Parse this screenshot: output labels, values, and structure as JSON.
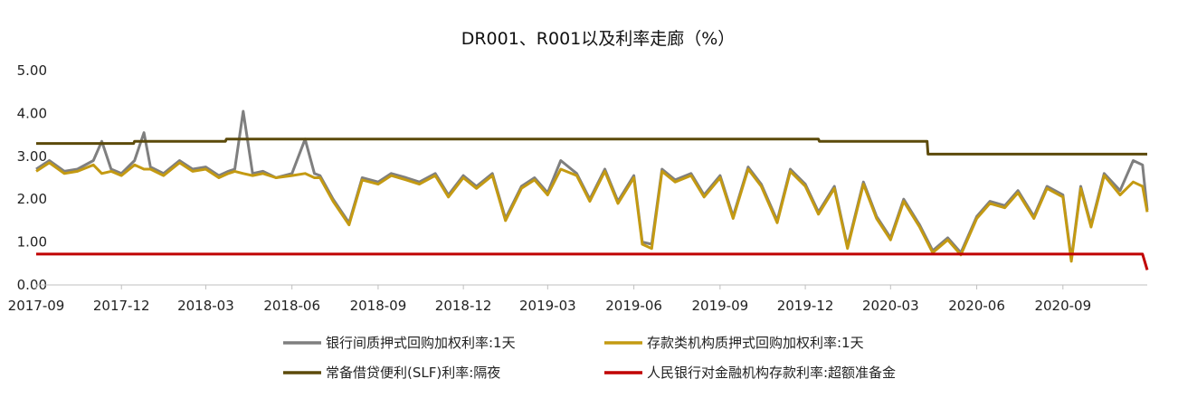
{
  "chart_data": {
    "type": "line",
    "title": "DR001、R001以及利率走廊（%）",
    "xlabel": "",
    "ylabel": "",
    "ylim": [
      0,
      5
    ],
    "yticks": [
      "0.00",
      "1.00",
      "2.00",
      "3.00",
      "4.00",
      "5.00"
    ],
    "xticks": [
      "2017-09",
      "2017-12",
      "2018-03",
      "2018-06",
      "2018-09",
      "2018-12",
      "2019-03",
      "2019-06",
      "2019-09",
      "2019-12",
      "2020-03",
      "2020-06",
      "2020-09"
    ],
    "x_range": [
      "2017-09-01",
      "2020-11-30"
    ],
    "grid": false,
    "legend_position": "bottom",
    "series": [
      {
        "name": "银行间质押式回购加权利率:1天",
        "color": "#7f7f7f",
        "x": [
          "2017-09-01",
          "2017-09-15",
          "2017-10-01",
          "2017-10-15",
          "2017-11-01",
          "2017-11-10",
          "2017-11-20",
          "2017-12-01",
          "2017-12-15",
          "2017-12-25",
          "2018-01-01",
          "2018-01-15",
          "2018-02-01",
          "2018-02-15",
          "2018-03-01",
          "2018-03-15",
          "2018-03-25",
          "2018-04-01",
          "2018-04-10",
          "2018-04-20",
          "2018-05-01",
          "2018-05-15",
          "2018-06-01",
          "2018-06-15",
          "2018-06-25",
          "2018-07-01",
          "2018-07-15",
          "2018-08-01",
          "2018-08-15",
          "2018-09-01",
          "2018-09-15",
          "2018-10-01",
          "2018-10-15",
          "2018-11-01",
          "2018-11-15",
          "2018-12-01",
          "2018-12-15",
          "2019-01-01",
          "2019-01-15",
          "2019-02-01",
          "2019-02-15",
          "2019-03-01",
          "2019-03-15",
          "2019-04-01",
          "2019-04-15",
          "2019-05-01",
          "2019-05-15",
          "2019-06-01",
          "2019-06-10",
          "2019-06-20",
          "2019-07-01",
          "2019-07-15",
          "2019-08-01",
          "2019-08-15",
          "2019-09-01",
          "2019-09-15",
          "2019-10-01",
          "2019-10-15",
          "2019-11-01",
          "2019-11-15",
          "2019-12-01",
          "2019-12-15",
          "2020-01-01",
          "2020-01-15",
          "2020-02-01",
          "2020-02-15",
          "2020-03-01",
          "2020-03-15",
          "2020-04-01",
          "2020-04-15",
          "2020-05-01",
          "2020-05-15",
          "2020-06-01",
          "2020-06-15",
          "2020-07-01",
          "2020-07-15",
          "2020-08-01",
          "2020-08-15",
          "2020-09-01",
          "2020-09-10",
          "2020-09-20",
          "2020-10-01",
          "2020-10-15",
          "2020-11-01",
          "2020-11-15",
          "2020-11-25",
          "2020-11-30"
        ],
        "values": [
          2.7,
          2.9,
          2.65,
          2.7,
          2.9,
          3.35,
          2.7,
          2.6,
          2.9,
          3.55,
          2.75,
          2.6,
          2.9,
          2.7,
          2.75,
          2.55,
          2.65,
          2.7,
          4.05,
          2.6,
          2.65,
          2.5,
          2.6,
          3.4,
          2.6,
          2.55,
          2.0,
          1.45,
          2.5,
          2.4,
          2.6,
          2.5,
          2.4,
          2.6,
          2.1,
          2.55,
          2.3,
          2.6,
          1.55,
          2.3,
          2.5,
          2.15,
          2.9,
          2.6,
          2.0,
          2.7,
          1.95,
          2.55,
          1.0,
          0.95,
          2.7,
          2.45,
          2.6,
          2.1,
          2.55,
          1.6,
          2.75,
          2.35,
          1.5,
          2.7,
          2.35,
          1.7,
          2.3,
          0.9,
          2.4,
          1.6,
          1.1,
          2.0,
          1.4,
          0.8,
          1.1,
          0.75,
          1.6,
          1.95,
          1.85,
          2.2,
          1.6,
          2.3,
          2.1,
          0.6,
          2.3,
          1.4,
          2.6,
          2.2,
          2.9,
          2.8,
          1.75
        ]
      },
      {
        "name": "存款类机构质押式回购加权利率:1天",
        "color": "#c49a12",
        "x": [
          "2017-09-01",
          "2017-09-15",
          "2017-10-01",
          "2017-10-15",
          "2017-11-01",
          "2017-11-10",
          "2017-11-20",
          "2017-12-01",
          "2017-12-15",
          "2017-12-25",
          "2018-01-01",
          "2018-01-15",
          "2018-02-01",
          "2018-02-15",
          "2018-03-01",
          "2018-03-15",
          "2018-03-25",
          "2018-04-01",
          "2018-04-10",
          "2018-04-20",
          "2018-05-01",
          "2018-05-15",
          "2018-06-01",
          "2018-06-15",
          "2018-06-25",
          "2018-07-01",
          "2018-07-15",
          "2018-08-01",
          "2018-08-15",
          "2018-09-01",
          "2018-09-15",
          "2018-10-01",
          "2018-10-15",
          "2018-11-01",
          "2018-11-15",
          "2018-12-01",
          "2018-12-15",
          "2019-01-01",
          "2019-01-15",
          "2019-02-01",
          "2019-02-15",
          "2019-03-01",
          "2019-03-15",
          "2019-04-01",
          "2019-04-15",
          "2019-05-01",
          "2019-05-15",
          "2019-06-01",
          "2019-06-10",
          "2019-06-20",
          "2019-07-01",
          "2019-07-15",
          "2019-08-01",
          "2019-08-15",
          "2019-09-01",
          "2019-09-15",
          "2019-10-01",
          "2019-10-15",
          "2019-11-01",
          "2019-11-15",
          "2019-12-01",
          "2019-12-15",
          "2020-01-01",
          "2020-01-15",
          "2020-02-01",
          "2020-02-15",
          "2020-03-01",
          "2020-03-15",
          "2020-04-01",
          "2020-04-15",
          "2020-05-01",
          "2020-05-15",
          "2020-06-01",
          "2020-06-15",
          "2020-07-01",
          "2020-07-15",
          "2020-08-01",
          "2020-08-15",
          "2020-09-01",
          "2020-09-10",
          "2020-09-20",
          "2020-10-01",
          "2020-10-15",
          "2020-11-01",
          "2020-11-15",
          "2020-11-25",
          "2020-11-30"
        ],
        "values": [
          2.65,
          2.85,
          2.6,
          2.65,
          2.8,
          2.6,
          2.65,
          2.55,
          2.8,
          2.7,
          2.7,
          2.55,
          2.85,
          2.65,
          2.7,
          2.5,
          2.6,
          2.65,
          2.6,
          2.55,
          2.6,
          2.5,
          2.55,
          2.6,
          2.5,
          2.5,
          1.95,
          1.4,
          2.45,
          2.35,
          2.55,
          2.45,
          2.35,
          2.55,
          2.05,
          2.5,
          2.25,
          2.55,
          1.5,
          2.25,
          2.45,
          2.1,
          2.7,
          2.55,
          1.95,
          2.65,
          1.9,
          2.5,
          0.95,
          0.85,
          2.65,
          2.4,
          2.55,
          2.05,
          2.5,
          1.55,
          2.7,
          2.3,
          1.45,
          2.65,
          2.3,
          1.65,
          2.25,
          0.85,
          2.35,
          1.55,
          1.05,
          1.95,
          1.35,
          0.75,
          1.05,
          0.7,
          1.55,
          1.9,
          1.8,
          2.15,
          1.55,
          2.25,
          2.05,
          0.55,
          2.25,
          1.35,
          2.55,
          2.1,
          2.4,
          2.3,
          1.7
        ]
      },
      {
        "name": "常备借贷便利(SLF)利率:隔夜",
        "color": "#5c4a0a",
        "x": [
          "2017-09-01",
          "2017-12-14",
          "2017-12-15",
          "2018-03-22",
          "2018-03-23",
          "2019-12-15",
          "2019-12-16",
          "2020-04-09",
          "2020-04-10",
          "2020-11-30"
        ],
        "values": [
          3.3,
          3.3,
          3.35,
          3.35,
          3.4,
          3.4,
          3.35,
          3.35,
          3.05,
          3.05
        ]
      },
      {
        "name": "人民银行对金融机构存款利率:超额准备金",
        "color": "#c00000",
        "x": [
          "2017-09-01",
          "2020-11-25",
          "2020-11-30"
        ],
        "values": [
          0.72,
          0.72,
          0.35
        ]
      }
    ]
  }
}
